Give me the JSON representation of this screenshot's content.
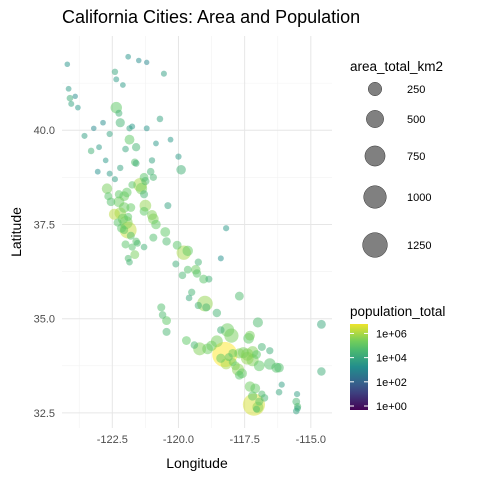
{
  "chart_data": {
    "type": "scatter",
    "title": "California Cities: Area and Population",
    "xlabel": "Longitude",
    "ylabel": "Latitude",
    "xlim": [
      -124.4,
      -114.2
    ],
    "ylim": [
      32.1,
      42.5
    ],
    "x_ticks": [
      -122.5,
      -120.0,
      -117.5,
      -115.0
    ],
    "x_tick_labels": [
      "-122.5",
      "-120.0",
      "-117.5",
      "-115.0"
    ],
    "y_ticks": [
      32.5,
      35.0,
      37.5,
      40.0
    ],
    "y_tick_labels": [
      "32.5",
      "35.0",
      "37.5",
      "40.0"
    ],
    "grid": true,
    "point_alpha": 0.5,
    "size_legend": {
      "title": "area_total_km2",
      "values": [
        250,
        500,
        750,
        1000,
        1250
      ],
      "labels": [
        "250",
        "500",
        "750",
        "1000",
        "1250"
      ],
      "color": "#808080"
    },
    "color_legend": {
      "title": "population_total",
      "labels": [
        "1e+06",
        "1e+04",
        "1e+02",
        "1e+00"
      ],
      "log10_values": [
        6,
        4,
        2,
        0
      ],
      "palette": "viridis",
      "colors": [
        "#440154",
        "#3b528b",
        "#21908c",
        "#5dc963",
        "#fde725"
      ]
    },
    "points": [
      [
        -124.2,
        41.75,
        4,
        3.4
      ],
      [
        -124.15,
        41.1,
        6,
        3.6
      ],
      [
        -124.1,
        40.85,
        15,
        4.1
      ],
      [
        -124.05,
        40.7,
        8,
        3.8
      ],
      [
        -123.8,
        40.6,
        5,
        3.5
      ],
      [
        -123.9,
        40.9,
        3,
        3.2
      ],
      [
        -123.55,
        39.85,
        9,
        3.7
      ],
      [
        -123.3,
        39.45,
        14,
        4.2
      ],
      [
        -123.0,
        39.55,
        6,
        3.6
      ],
      [
        -122.75,
        39.2,
        5,
        3.5
      ],
      [
        -122.4,
        41.55,
        12,
        3.9
      ],
      [
        -122.35,
        41.35,
        7,
        3.6
      ],
      [
        -122.1,
        41.2,
        6,
        3.6
      ],
      [
        -121.9,
        41.95,
        5,
        3.4
      ],
      [
        -121.5,
        41.85,
        4,
        3.2
      ],
      [
        -121.2,
        41.8,
        3,
        3.0
      ],
      [
        -120.55,
        41.5,
        8,
        3.7
      ],
      [
        -122.35,
        40.6,
        150,
        4.9
      ],
      [
        -122.25,
        40.45,
        20,
        4.2
      ],
      [
        -122.2,
        40.2,
        70,
        4.3
      ],
      [
        -121.85,
        40.05,
        10,
        3.8
      ],
      [
        -121.85,
        39.75,
        90,
        4.9
      ],
      [
        -121.6,
        39.55,
        45,
        4.3
      ],
      [
        -121.65,
        39.15,
        30,
        4.6
      ],
      [
        -121.6,
        39.12,
        20,
        4.2
      ],
      [
        -121.0,
        39.2,
        12,
        3.8
      ],
      [
        -121.05,
        38.9,
        30,
        4.3
      ],
      [
        -120.95,
        38.75,
        25,
        4.4
      ],
      [
        -121.3,
        38.75,
        60,
        4.8
      ],
      [
        -121.25,
        38.65,
        45,
        4.5
      ],
      [
        -121.45,
        38.55,
        260,
        5.7
      ],
      [
        -121.4,
        38.45,
        150,
        5.2
      ],
      [
        -121.3,
        38.3,
        40,
        4.3
      ],
      [
        -121.75,
        38.55,
        30,
        4.8
      ],
      [
        -121.95,
        38.35,
        80,
        5.0
      ],
      [
        -122.05,
        38.25,
        90,
        5.1
      ],
      [
        -122.25,
        38.3,
        45,
        4.9
      ],
      [
        -122.7,
        38.45,
        110,
        5.2
      ],
      [
        -122.65,
        38.25,
        40,
        4.8
      ],
      [
        -122.55,
        38.1,
        55,
        4.7
      ],
      [
        -122.25,
        38.1,
        120,
        5.1
      ],
      [
        -122.05,
        37.95,
        110,
        5.1
      ],
      [
        -121.9,
        37.7,
        40,
        4.9
      ],
      [
        -121.8,
        37.95,
        60,
        5.0
      ],
      [
        -122.42,
        37.77,
        130,
        5.9
      ],
      [
        -122.3,
        37.55,
        40,
        4.8
      ],
      [
        -122.2,
        37.8,
        150,
        5.6
      ],
      [
        -122.1,
        37.65,
        110,
        5.1
      ],
      [
        -121.98,
        37.55,
        230,
        5.3
      ],
      [
        -121.9,
        37.35,
        470,
        6.0
      ],
      [
        -122.05,
        37.35,
        40,
        4.9
      ],
      [
        -122.15,
        37.4,
        65,
        4.8
      ],
      [
        -121.8,
        37.2,
        40,
        4.6
      ],
      [
        -121.6,
        37.05,
        30,
        4.7
      ],
      [
        -121.55,
        37.0,
        20,
        4.5
      ],
      [
        -122.0,
        36.97,
        40,
        4.8
      ],
      [
        -121.75,
        36.9,
        25,
        4.7
      ],
      [
        -121.65,
        36.7,
        60,
        5.2
      ],
      [
        -121.9,
        36.6,
        20,
        4.5
      ],
      [
        -121.85,
        36.5,
        15,
        4.3
      ],
      [
        -121.25,
        38.0,
        160,
        5.5
      ],
      [
        -121.0,
        37.75,
        100,
        5.3
      ],
      [
        -120.95,
        37.65,
        120,
        5.3
      ],
      [
        -120.85,
        37.5,
        80,
        5.0
      ],
      [
        -120.5,
        37.3,
        90,
        4.9
      ],
      [
        -120.45,
        37.05,
        50,
        4.5
      ],
      [
        -120.05,
        36.95,
        60,
        4.8
      ],
      [
        -119.8,
        36.75,
        300,
        5.7
      ],
      [
        -119.65,
        36.8,
        110,
        5.0
      ],
      [
        -119.35,
        36.3,
        80,
        5.1
      ],
      [
        -119.3,
        36.2,
        50,
        4.8
      ],
      [
        -119.65,
        36.3,
        35,
        4.7
      ],
      [
        -119.05,
        36.05,
        60,
        4.8
      ],
      [
        -119.0,
        35.4,
        380,
        5.5
      ],
      [
        -118.95,
        35.3,
        40,
        4.4
      ],
      [
        -119.25,
        35.35,
        25,
        4.2
      ],
      [
        -120.65,
        35.3,
        40,
        4.6
      ],
      [
        -120.6,
        35.1,
        30,
        4.5
      ],
      [
        -120.45,
        34.95,
        60,
        4.9
      ],
      [
        -120.45,
        34.65,
        40,
        4.4
      ],
      [
        -119.7,
        34.42,
        60,
        4.9
      ],
      [
        -119.4,
        34.3,
        30,
        4.4
      ],
      [
        -119.2,
        34.2,
        220,
        5.3
      ],
      [
        -118.9,
        34.2,
        120,
        5.1
      ],
      [
        -118.75,
        34.28,
        110,
        5.1
      ],
      [
        -118.55,
        34.4,
        170,
        5.2
      ],
      [
        -118.15,
        34.7,
        250,
        5.1
      ],
      [
        -118.0,
        34.55,
        290,
        5.2
      ],
      [
        -117.3,
        34.55,
        90,
        5.2
      ],
      [
        -117.35,
        34.48,
        120,
        4.9
      ],
      [
        -117.0,
        34.9,
        100,
        4.5
      ],
      [
        -117.2,
        34.12,
        150,
        5.3
      ],
      [
        -117.4,
        34.05,
        190,
        5.4
      ],
      [
        -117.4,
        33.95,
        210,
        5.5
      ],
      [
        -117.2,
        33.9,
        180,
        5.3
      ],
      [
        -116.95,
        33.75,
        120,
        4.9
      ],
      [
        -116.55,
        33.8,
        150,
        4.7
      ],
      [
        -116.3,
        33.7,
        100,
        4.7
      ],
      [
        -116.2,
        33.7,
        80,
        4.6
      ],
      [
        -117.95,
        33.85,
        40,
        5.0
      ],
      [
        -117.85,
        33.75,
        60,
        5.3
      ],
      [
        -117.75,
        33.65,
        180,
        5.4
      ],
      [
        -117.6,
        33.55,
        90,
        5.0
      ],
      [
        -117.7,
        33.5,
        60,
        4.8
      ],
      [
        -118.25,
        34.05,
        1300,
        6.6
      ],
      [
        -118.4,
        33.95,
        70,
        4.9
      ],
      [
        -118.2,
        33.8,
        130,
        5.7
      ],
      [
        -118.1,
        33.98,
        40,
        4.8
      ],
      [
        -117.95,
        34.08,
        60,
        5.0
      ],
      [
        -117.7,
        34.08,
        100,
        5.3
      ],
      [
        -117.55,
        34.1,
        130,
        5.2
      ],
      [
        -117.3,
        33.2,
        110,
        5.1
      ],
      [
        -117.1,
        33.15,
        90,
        5.0
      ],
      [
        -117.2,
        32.95,
        70,
        4.8
      ],
      [
        -117.15,
        32.72,
        950,
        6.2
      ],
      [
        -117.0,
        32.65,
        130,
        5.4
      ],
      [
        -116.95,
        32.8,
        40,
        4.8
      ],
      [
        -117.05,
        32.6,
        20,
        4.6
      ],
      [
        -115.55,
        32.8,
        35,
        4.4
      ],
      [
        -115.5,
        32.67,
        25,
        4.5
      ],
      [
        -115.55,
        32.55,
        15,
        3.8
      ],
      [
        -115.5,
        32.62,
        15,
        3.9
      ],
      [
        -115.52,
        33.0,
        10,
        3.7
      ],
      [
        -114.6,
        34.85,
        60,
        4.0
      ],
      [
        -114.6,
        33.6,
        50,
        4.1
      ],
      [
        -117.7,
        35.6,
        60,
        4.5
      ],
      [
        -118.55,
        35.15,
        50,
        4.3
      ],
      [
        -118.4,
        36.6,
        8,
        3.3
      ],
      [
        -118.2,
        37.4,
        10,
        3.5
      ],
      [
        -119.9,
        38.95,
        80,
        4.2
      ],
      [
        -120.4,
        38.0,
        20,
        3.8
      ],
      [
        -120.0,
        39.3,
        10,
        3.6
      ],
      [
        -120.3,
        39.75,
        6,
        3.5
      ],
      [
        -120.7,
        40.3,
        15,
        3.8
      ],
      [
        -122.6,
        39.9,
        10,
        3.8
      ],
      [
        -122.0,
        39.5,
        15,
        3.9
      ],
      [
        -122.2,
        39.0,
        12,
        3.8
      ],
      [
        -122.6,
        38.85,
        8,
        3.6
      ],
      [
        -123.05,
        38.9,
        6,
        3.3
      ],
      [
        -122.4,
        38.7,
        9,
        3.7
      ],
      [
        -121.75,
        40.1,
        8,
        3.5
      ],
      [
        -121.2,
        40.05,
        7,
        3.4
      ],
      [
        -120.85,
        39.65,
        6,
        3.5
      ],
      [
        -122.85,
        40.2,
        5,
        3.2
      ],
      [
        -123.2,
        40.05,
        4,
        3.1
      ],
      [
        -121.3,
        37.85,
        60,
        4.9
      ],
      [
        -120.95,
        37.15,
        40,
        4.6
      ],
      [
        -121.3,
        36.9,
        15,
        4.2
      ],
      [
        -120.1,
        36.45,
        20,
        4.1
      ],
      [
        -119.5,
        35.7,
        25,
        4.3
      ],
      [
        -119.6,
        35.55,
        15,
        4.0
      ],
      [
        -119.85,
        36.15,
        30,
        4.4
      ],
      [
        -119.25,
        36.5,
        25,
        4.3
      ],
      [
        -118.85,
        36.05,
        20,
        4.2
      ],
      [
        -118.4,
        34.7,
        30,
        4.2
      ],
      [
        -117.05,
        34.05,
        60,
        4.9
      ],
      [
        -116.85,
        34.25,
        40,
        4.3
      ],
      [
        -116.55,
        34.15,
        25,
        4.1
      ],
      [
        -116.1,
        33.25,
        10,
        3.7
      ],
      [
        -116.2,
        33.05,
        15,
        3.9
      ],
      [
        -116.75,
        32.9,
        30,
        4.3
      ],
      [
        -116.85,
        33.0,
        25,
        4.5
      ]
    ]
  }
}
